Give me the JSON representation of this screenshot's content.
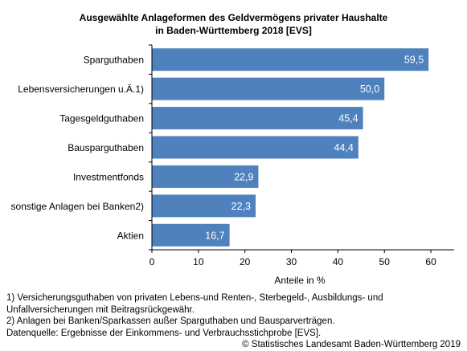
{
  "chart_data": {
    "type": "bar",
    "orientation": "horizontal",
    "title_lines": [
      "Ausgewählte Anlageformen des Geldvermögens privater Haushalte",
      "in Baden-Württemberg 2018 [EVS]"
    ],
    "categories": [
      "Sparguthaben",
      "Lebensversicherungen u.Ä.1)",
      "Tagesgeldguthaben",
      "Bausparguthaben",
      "Investmentfonds",
      "sonstige Anlagen bei Banken2)",
      "Aktien"
    ],
    "values": [
      59.5,
      50.0,
      45.4,
      44.4,
      22.9,
      22.3,
      16.7
    ],
    "value_labels": [
      "59,5",
      "50,0",
      "45,4",
      "44,4",
      "22,9",
      "22,3",
      "16,7"
    ],
    "xlabel": "Anteile in %",
    "ylabel": "",
    "xlim": [
      0,
      65
    ],
    "xticks": [
      0,
      10,
      20,
      30,
      40,
      50,
      60
    ],
    "grid": false,
    "legend": "none",
    "bar_color": "#4f81bd",
    "label_color": "#ffffff"
  },
  "footer": {
    "footnote1": "1) Versicherungsguthaben von privaten Lebens-und Renten-, Sterbegeld-, Ausbildungs- und Unfallversicherungen mit Beitragsrückgewähr.",
    "footnote2": "2) Anlagen bei Banken/Sparkassen außer Sparguthaben und Bausparverträgen.",
    "source": "Datenquelle: Ergebnisse der Einkommens- und Verbrauchsstichprobe [EVS].",
    "copyright": "© Statistisches Landesamt Baden-Württemberg 2019"
  }
}
